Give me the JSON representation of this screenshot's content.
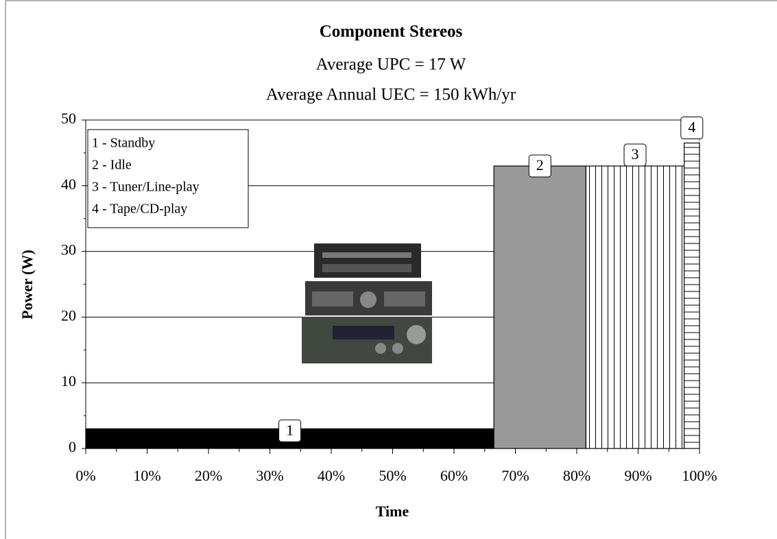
{
  "chart_data": {
    "type": "histogram",
    "title": "Component Stereos",
    "subtitle": [
      "Average UPC = 17 W",
      "Average Annual UEC = 150 kWh/yr"
    ],
    "x_label": "Time",
    "y_label": "Power (W)",
    "bins": [
      0,
      66.5,
      81.5,
      97.5,
      100
    ],
    "values": [
      3,
      43,
      43,
      46.5
    ],
    "labels": [
      "1",
      "2",
      "3",
      "4"
    ],
    "colors": [
      "#000000",
      "#999999",
      "#ffffff",
      "#ffffff"
    ],
    "patterns": [
      "solid",
      "solid",
      "vertical",
      "horizontal"
    ],
    "legend": [
      "1 - Standby",
      "2 - Idle",
      "3 - Tuner/Line-play",
      "4 - Tape/CD-play"
    ],
    "legend_position": "upper left",
    "xlim": [
      0,
      100
    ],
    "xticks": [
      {
        "value": 0,
        "label": "0%"
      },
      {
        "value": 10,
        "label": "10%"
      },
      {
        "value": 20,
        "label": "20%"
      },
      {
        "value": 30,
        "label": "30%"
      },
      {
        "value": 40,
        "label": "40%"
      },
      {
        "value": 50,
        "label": "50%"
      },
      {
        "value": 60,
        "label": "60%"
      },
      {
        "value": 70,
        "label": "70%"
      },
      {
        "value": 80,
        "label": "80%"
      },
      {
        "value": 90,
        "label": "90%"
      },
      {
        "value": 100,
        "label": "100%"
      }
    ],
    "xminorticks": [
      5,
      15,
      25,
      35,
      45,
      55,
      65,
      75,
      85,
      95
    ],
    "ylim": [
      0,
      50
    ],
    "yticks": [
      0,
      10,
      20,
      30,
      40,
      50
    ],
    "yminorticks": [
      5,
      15,
      25,
      35,
      45
    ],
    "grid": true
  }
}
